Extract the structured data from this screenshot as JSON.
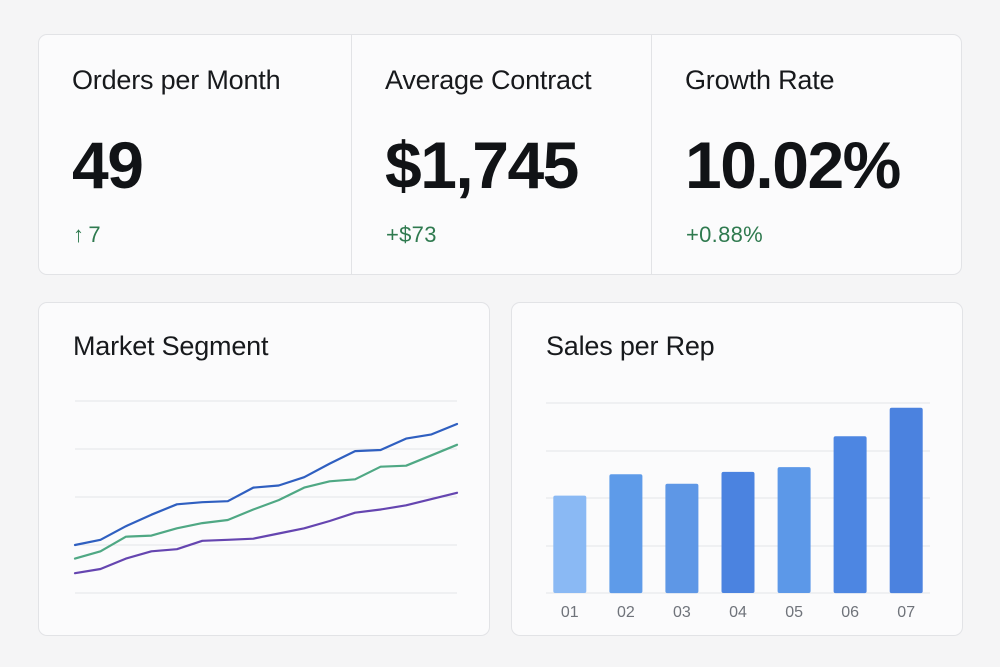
{
  "kpis": [
    {
      "title": "Orders per Month",
      "value": "49",
      "delta_arrow": "↑",
      "delta": "7"
    },
    {
      "title": "Average Contract",
      "value": "$1,745",
      "delta_arrow": "",
      "delta": "+$73"
    },
    {
      "title": "Growth Rate",
      "value": "10.02%",
      "delta_arrow": "",
      "delta": "+0.88%"
    }
  ],
  "colors": {
    "positive": "#2f7a4f",
    "line_series": [
      "#2f5fc0",
      "#4fa884",
      "#6545b0"
    ],
    "bars": [
      "#8ab9f4",
      "#5e9be9",
      "#5e97e6",
      "#4b83e0",
      "#5c98e8",
      "#4d86e2",
      "#4b82df"
    ]
  },
  "chart_data": [
    {
      "type": "line",
      "title": "Market Segment",
      "x": [
        1,
        2,
        3,
        4,
        5,
        6,
        7,
        8,
        9,
        10,
        11,
        12,
        13,
        14,
        15,
        16
      ],
      "series": [
        {
          "values": [
            34,
            39,
            52,
            63,
            73,
            75,
            76,
            89,
            91,
            99,
            112,
            124,
            125,
            136,
            140,
            150
          ]
        },
        {
          "values": [
            21,
            28,
            42,
            43,
            50,
            55,
            58,
            68,
            77,
            89,
            95,
            97,
            109,
            110,
            120,
            130
          ]
        },
        {
          "values": [
            7,
            11,
            21,
            28,
            30,
            38,
            39,
            40,
            45,
            50,
            57,
            65,
            68,
            72,
            78,
            84
          ]
        }
      ],
      "ylim": [
        -12,
        172
      ],
      "grid": true
    },
    {
      "type": "bar",
      "title": "Sales per Rep",
      "categories": [
        "01",
        "02",
        "03",
        "04",
        "05",
        "06",
        "07"
      ],
      "values": [
        41,
        50,
        46,
        51,
        53,
        66,
        78
      ],
      "ylim": [
        0,
        80
      ],
      "grid": true
    }
  ]
}
